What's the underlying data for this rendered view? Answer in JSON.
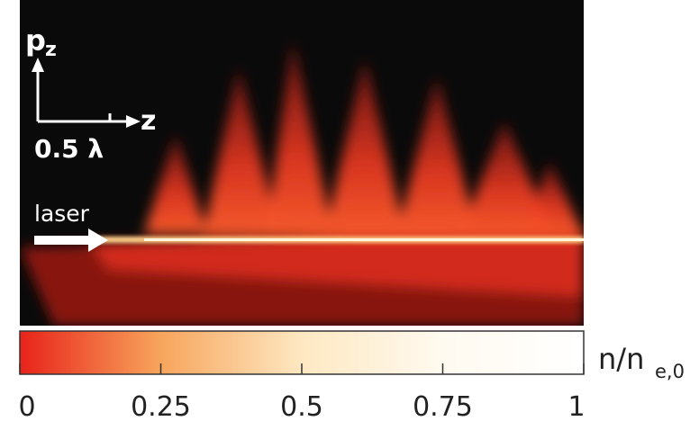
{
  "figure": {
    "y_axis": {
      "label": "p",
      "subscript": "z"
    },
    "x_axis": {
      "label": "z"
    },
    "scale_bar": {
      "label": "0.5 λ"
    },
    "beam_label": "laser",
    "colorbar": {
      "label": "n/n",
      "subscript": "e,0",
      "clim": [
        0,
        1
      ],
      "ticks": [
        0,
        0.25,
        0.5,
        0.75,
        1
      ]
    }
  }
}
